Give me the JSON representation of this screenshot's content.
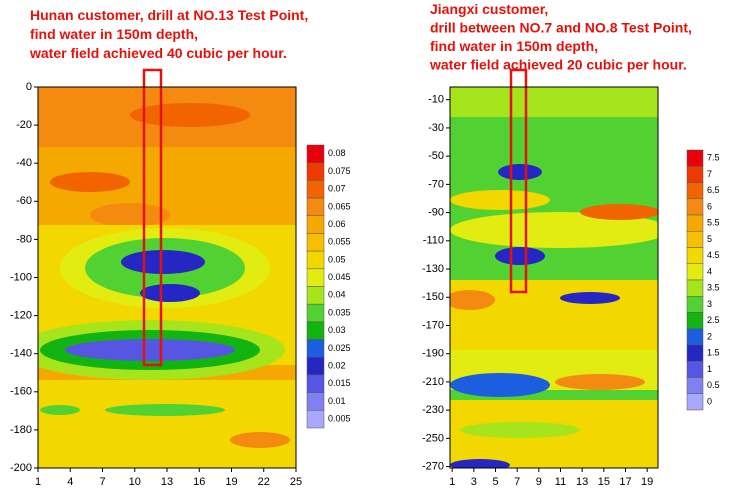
{
  "chart_data": [
    {
      "type": "contour",
      "caption": [
        "Hunan customer, drill at  NO.13 Test Point,",
        "find water in 150m depth,",
        "water field achieved 40 cubic per hour."
      ],
      "xlim": [
        1,
        25
      ],
      "xticks": [
        1,
        4,
        7,
        10,
        13,
        16,
        19,
        22,
        25
      ],
      "ylim": [
        -200,
        0
      ],
      "yticks": [
        0,
        -20,
        -40,
        -60,
        -80,
        -100,
        -120,
        -140,
        -160,
        -180,
        -200
      ],
      "levels": [
        0.08,
        0.075,
        0.07,
        0.065,
        0.06,
        0.055,
        0.05,
        0.045,
        0.04,
        0.035,
        0.03,
        0.025,
        0.02,
        0.015,
        0.01,
        0.005
      ],
      "level_colors": [
        "#e8000b",
        "#ee3a00",
        "#f26400",
        "#f48a10",
        "#f5a800",
        "#f6bf00",
        "#f3d800",
        "#e2ec10",
        "#a6e41c",
        "#52d232",
        "#12b412",
        "#1c5ee0",
        "#2626c4",
        "#5656e2",
        "#8080f0",
        "#a8a8ff"
      ]
    },
    {
      "type": "contour",
      "caption": [
        "Jiangxi customer,",
        "drill between NO.7 and NO.8 Test Point,",
        "find water in 150m depth,",
        "water field achieved 20 cubic per hour."
      ],
      "xlim": [
        0.8,
        20
      ],
      "xticks": [
        1,
        3,
        5,
        7,
        9,
        11,
        13,
        15,
        17,
        19
      ],
      "ylim": [
        -271,
        -1
      ],
      "yticks": [
        -10,
        -30,
        -50,
        -70,
        -90,
        -110,
        -130,
        -150,
        -170,
        -190,
        -210,
        -230,
        -250,
        -270
      ],
      "levels": [
        7.5,
        7,
        6.5,
        6,
        5.5,
        5,
        4.5,
        4,
        3.5,
        3,
        2.5,
        2,
        1.5,
        1,
        0.5,
        0
      ],
      "level_colors": [
        "#e8000b",
        "#ee3a00",
        "#f26400",
        "#f48a10",
        "#f5a800",
        "#f6bf00",
        "#f3d800",
        "#e2ec10",
        "#a6e41c",
        "#52d232",
        "#12b412",
        "#1c5ee0",
        "#2626c4",
        "#5656e2",
        "#8080f0",
        "#a8a8ff"
      ]
    }
  ]
}
